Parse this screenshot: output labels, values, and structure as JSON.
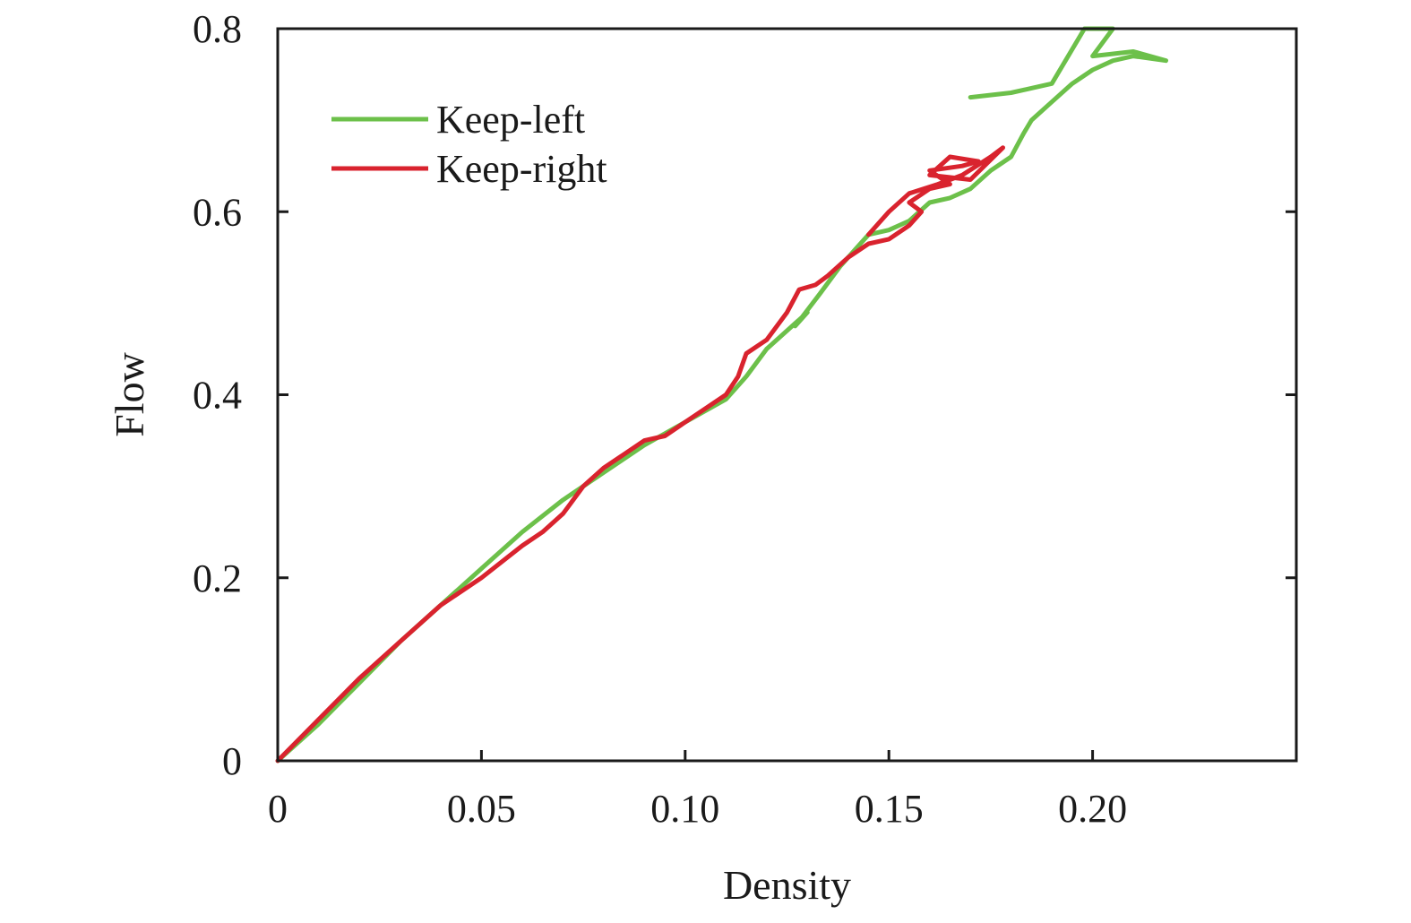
{
  "chart_data": {
    "type": "line",
    "title": "",
    "xlabel": "Density",
    "ylabel": "Flow",
    "xlim": [
      0,
      0.25
    ],
    "ylim": [
      0,
      0.8
    ],
    "xticks": [
      0,
      0.05,
      0.1,
      0.15,
      0.2
    ],
    "xtick_labels": [
      "0",
      "0.05",
      "0.10",
      "0.15",
      "0.20"
    ],
    "yticks": [
      0,
      0.2,
      0.4,
      0.6,
      0.8
    ],
    "ytick_labels": [
      "0",
      "0.2",
      "0.4",
      "0.6",
      "0.8"
    ],
    "grid": false,
    "legend_position": "top-left",
    "series": [
      {
        "name": "Keep-left",
        "color": "#6cc04a",
        "x": [
          0,
          0.01,
          0.02,
          0.03,
          0.04,
          0.05,
          0.06,
          0.07,
          0.08,
          0.09,
          0.1,
          0.11,
          0.115,
          0.12,
          0.125,
          0.13,
          0.127,
          0.133,
          0.138,
          0.142,
          0.145,
          0.15,
          0.155,
          0.16,
          0.165,
          0.17,
          0.175,
          0.18,
          0.183,
          0.185,
          0.19,
          0.195,
          0.2,
          0.205,
          0.21,
          0.218,
          0.21,
          0.2,
          0.205,
          0.198,
          0.19,
          0.18,
          0.17
        ],
        "y": [
          0,
          0.04,
          0.085,
          0.13,
          0.17,
          0.21,
          0.25,
          0.285,
          0.315,
          0.345,
          0.37,
          0.395,
          0.42,
          0.45,
          0.47,
          0.49,
          0.475,
          0.51,
          0.54,
          0.56,
          0.575,
          0.58,
          0.59,
          0.61,
          0.615,
          0.625,
          0.645,
          0.66,
          0.685,
          0.7,
          0.72,
          0.74,
          0.755,
          0.765,
          0.77,
          0.765,
          0.775,
          0.77,
          0.8,
          0.8,
          0.74,
          0.73,
          0.725
        ]
      },
      {
        "name": "Keep-right",
        "color": "#d9232e",
        "x": [
          0,
          0.01,
          0.02,
          0.03,
          0.04,
          0.05,
          0.06,
          0.065,
          0.07,
          0.075,
          0.08,
          0.085,
          0.09,
          0.095,
          0.1,
          0.105,
          0.11,
          0.113,
          0.115,
          0.12,
          0.125,
          0.128,
          0.132,
          0.135,
          0.14,
          0.145,
          0.15,
          0.155,
          0.158,
          0.155,
          0.16,
          0.165,
          0.16,
          0.168,
          0.172,
          0.165,
          0.16,
          0.17,
          0.178,
          0.175,
          0.168,
          0.162,
          0.155,
          0.15,
          0.145
        ],
        "y": [
          0,
          0.045,
          0.09,
          0.13,
          0.17,
          0.2,
          0.235,
          0.25,
          0.27,
          0.3,
          0.32,
          0.335,
          0.35,
          0.355,
          0.37,
          0.385,
          0.4,
          0.42,
          0.445,
          0.46,
          0.49,
          0.515,
          0.52,
          0.53,
          0.55,
          0.565,
          0.57,
          0.585,
          0.6,
          0.61,
          0.625,
          0.63,
          0.645,
          0.65,
          0.655,
          0.66,
          0.64,
          0.635,
          0.67,
          0.66,
          0.64,
          0.63,
          0.62,
          0.6,
          0.575
        ]
      }
    ]
  }
}
